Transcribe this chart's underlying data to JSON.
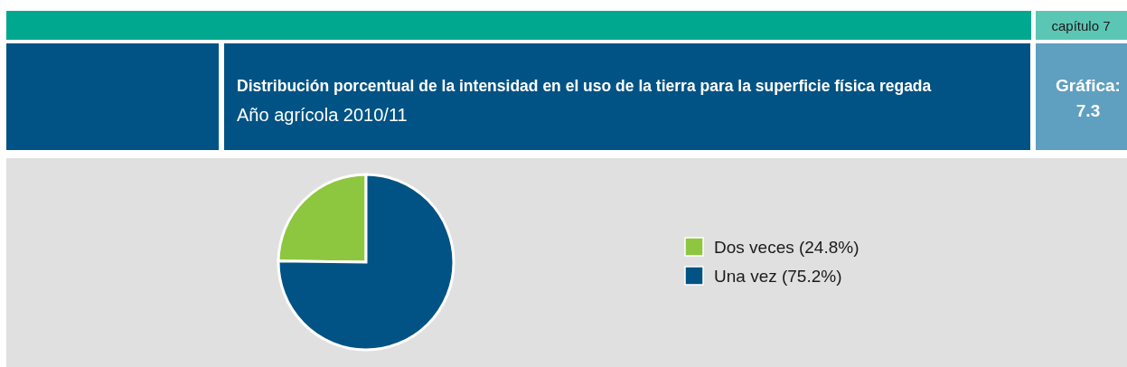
{
  "chart_data": {
    "type": "pie",
    "title": "Distribución porcentual de la intensidad en el uso de la tierra para la superficie física regada",
    "subtitle": "Año agrícola 2010/11",
    "annotations": [
      "capítulo 7",
      "Gráfica:\n7.3"
    ],
    "categories": [
      "Dos veces (24.8%)",
      "Una vez (75.2%)"
    ],
    "values": [
      24.8,
      75.2
    ],
    "colors": [
      "#8dc63f",
      "#005384"
    ],
    "legend": "right"
  }
}
